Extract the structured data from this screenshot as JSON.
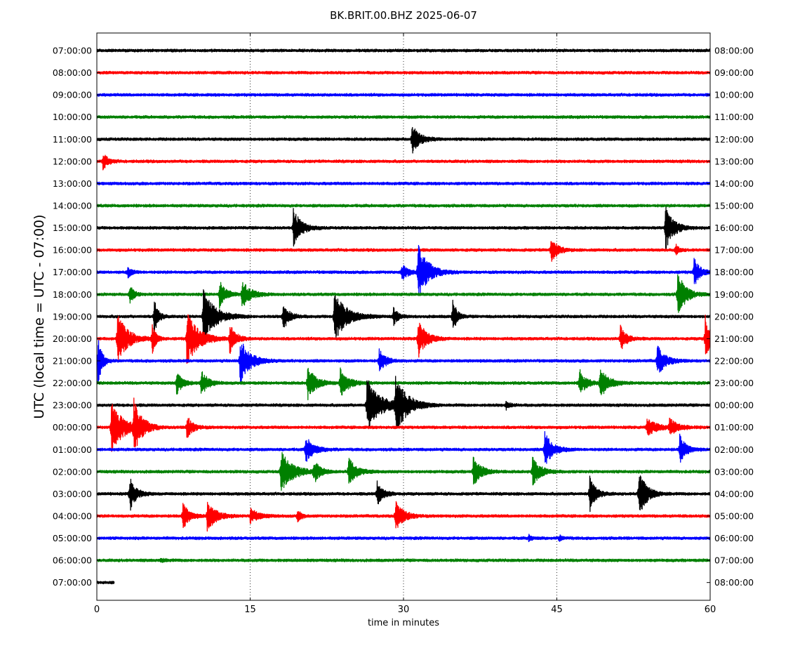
{
  "chart_data": {
    "type": "line",
    "title": "BK.BRIT.00.BHZ 2025-06-07",
    "xlabel": "time in minutes",
    "ylabel": "UTC (local time = UTC - 07:00)",
    "xlim": [
      0,
      60
    ],
    "x_ticks": [
      "0",
      "15",
      "30",
      "45",
      "60"
    ],
    "grid": "vertical dotted at 15, 30, 45",
    "trace_colors": [
      "#000000",
      "#ff0000",
      "#0000ff",
      "#008000"
    ],
    "rows": [
      {
        "left": "07:00:00",
        "right": "08:00:00",
        "bursts": [],
        "end_minute": 60
      },
      {
        "left": "08:00:00",
        "right": "09:00:00",
        "bursts": [],
        "end_minute": 60
      },
      {
        "left": "09:00:00",
        "right": "10:00:00",
        "bursts": [],
        "end_minute": 60
      },
      {
        "left": "10:00:00",
        "right": "11:00:00",
        "bursts": [],
        "end_minute": 60
      },
      {
        "left": "11:00:00",
        "right": "12:00:00",
        "bursts": [
          {
            "t": 30.8,
            "a": 1.0,
            "d": 2.0
          }
        ],
        "end_minute": 60
      },
      {
        "left": "12:00:00",
        "right": "13:00:00",
        "bursts": [
          {
            "t": 0.6,
            "a": 0.6,
            "d": 1.2
          }
        ],
        "end_minute": 60
      },
      {
        "left": "13:00:00",
        "right": "14:00:00",
        "bursts": [],
        "end_minute": 60
      },
      {
        "left": "14:00:00",
        "right": "15:00:00",
        "bursts": [],
        "end_minute": 60
      },
      {
        "left": "15:00:00",
        "right": "16:00:00",
        "bursts": [
          {
            "t": 19.2,
            "a": 1.3,
            "d": 2.0
          },
          {
            "t": 55.6,
            "a": 1.6,
            "d": 2.0
          }
        ],
        "end_minute": 60
      },
      {
        "left": "16:00:00",
        "right": "17:00:00",
        "bursts": [
          {
            "t": 44.4,
            "a": 1.0,
            "d": 1.5
          },
          {
            "t": 56.6,
            "a": 0.4,
            "d": 0.8
          }
        ],
        "end_minute": 60
      },
      {
        "left": "17:00:00",
        "right": "18:00:00",
        "bursts": [
          {
            "t": 3.0,
            "a": 0.4,
            "d": 1.0
          },
          {
            "t": 29.8,
            "a": 0.6,
            "d": 1.5
          },
          {
            "t": 31.4,
            "a": 2.0,
            "d": 2.5
          },
          {
            "t": 58.4,
            "a": 1.0,
            "d": 1.5
          }
        ],
        "end_minute": 60
      },
      {
        "left": "18:00:00",
        "right": "19:00:00",
        "bursts": [
          {
            "t": 3.2,
            "a": 0.7,
            "d": 1.0
          },
          {
            "t": 12.0,
            "a": 1.0,
            "d": 1.5
          },
          {
            "t": 14.2,
            "a": 1.0,
            "d": 2.0
          },
          {
            "t": 56.8,
            "a": 1.6,
            "d": 2.0
          }
        ],
        "end_minute": 60
      },
      {
        "left": "19:00:00",
        "right": "20:00:00",
        "bursts": [
          {
            "t": 5.6,
            "a": 1.3,
            "d": 1.0
          },
          {
            "t": 10.4,
            "a": 1.8,
            "d": 3.0
          },
          {
            "t": 18.2,
            "a": 1.0,
            "d": 1.5
          },
          {
            "t": 23.2,
            "a": 1.8,
            "d": 3.0
          },
          {
            "t": 29.0,
            "a": 0.7,
            "d": 1.0
          },
          {
            "t": 34.8,
            "a": 1.3,
            "d": 1.0
          }
        ],
        "end_minute": 60
      },
      {
        "left": "20:00:00",
        "right": "21:00:00",
        "bursts": [
          {
            "t": 2.0,
            "a": 1.8,
            "d": 2.5
          },
          {
            "t": 5.4,
            "a": 1.0,
            "d": 1.0
          },
          {
            "t": 8.8,
            "a": 1.8,
            "d": 3.0
          },
          {
            "t": 13.0,
            "a": 1.0,
            "d": 1.5
          },
          {
            "t": 31.4,
            "a": 1.4,
            "d": 2.0
          },
          {
            "t": 51.2,
            "a": 0.9,
            "d": 1.5
          },
          {
            "t": 59.5,
            "a": 1.6,
            "d": 1.5
          }
        ],
        "end_minute": 60
      },
      {
        "left": "21:00:00",
        "right": "22:00:00",
        "bursts": [
          {
            "t": 0.1,
            "a": 1.8,
            "d": 1.0
          },
          {
            "t": 14.0,
            "a": 1.6,
            "d": 2.5
          },
          {
            "t": 27.6,
            "a": 0.9,
            "d": 1.5
          },
          {
            "t": 54.8,
            "a": 1.1,
            "d": 2.0
          }
        ],
        "end_minute": 60
      },
      {
        "left": "22:00:00",
        "right": "23:00:00",
        "bursts": [
          {
            "t": 7.8,
            "a": 0.8,
            "d": 1.5
          },
          {
            "t": 10.2,
            "a": 1.0,
            "d": 1.5
          },
          {
            "t": 20.6,
            "a": 1.2,
            "d": 2.0
          },
          {
            "t": 23.8,
            "a": 1.0,
            "d": 2.0
          },
          {
            "t": 47.2,
            "a": 1.0,
            "d": 1.5
          },
          {
            "t": 49.2,
            "a": 1.2,
            "d": 2.0
          }
        ],
        "end_minute": 60
      },
      {
        "left": "23:00:00",
        "right": "00:00:00",
        "bursts": [
          {
            "t": 26.4,
            "a": 1.8,
            "d": 3.5
          },
          {
            "t": 29.2,
            "a": 1.8,
            "d": 3.0
          },
          {
            "t": 40.0,
            "a": 0.3,
            "d": 1.0
          }
        ],
        "end_minute": 60
      },
      {
        "left": "00:00:00",
        "right": "01:00:00",
        "bursts": [
          {
            "t": 1.4,
            "a": 1.8,
            "d": 3.0
          },
          {
            "t": 3.6,
            "a": 1.8,
            "d": 2.0
          },
          {
            "t": 8.8,
            "a": 0.8,
            "d": 1.5
          },
          {
            "t": 53.8,
            "a": 0.6,
            "d": 2.5
          },
          {
            "t": 56.0,
            "a": 0.6,
            "d": 2.0
          }
        ],
        "end_minute": 60
      },
      {
        "left": "01:00:00",
        "right": "02:00:00",
        "bursts": [
          {
            "t": 20.4,
            "a": 0.9,
            "d": 2.0
          },
          {
            "t": 43.8,
            "a": 1.2,
            "d": 2.0
          },
          {
            "t": 57.0,
            "a": 1.1,
            "d": 1.5
          }
        ],
        "end_minute": 60
      },
      {
        "left": "02:00:00",
        "right": "03:00:00",
        "bursts": [
          {
            "t": 18.0,
            "a": 1.4,
            "d": 3.0
          },
          {
            "t": 21.2,
            "a": 0.8,
            "d": 1.5
          },
          {
            "t": 24.6,
            "a": 1.0,
            "d": 2.0
          },
          {
            "t": 36.8,
            "a": 1.0,
            "d": 2.0
          },
          {
            "t": 42.6,
            "a": 1.0,
            "d": 2.0
          }
        ],
        "end_minute": 60
      },
      {
        "left": "03:00:00",
        "right": "04:00:00",
        "bursts": [
          {
            "t": 3.2,
            "a": 1.3,
            "d": 1.5
          },
          {
            "t": 27.4,
            "a": 0.9,
            "d": 1.5
          },
          {
            "t": 48.2,
            "a": 1.3,
            "d": 1.5
          },
          {
            "t": 53.0,
            "a": 1.6,
            "d": 2.0
          }
        ],
        "end_minute": 60
      },
      {
        "left": "04:00:00",
        "right": "05:00:00",
        "bursts": [
          {
            "t": 8.4,
            "a": 1.0,
            "d": 1.5
          },
          {
            "t": 10.8,
            "a": 1.1,
            "d": 2.0
          },
          {
            "t": 15.0,
            "a": 0.5,
            "d": 2.0
          },
          {
            "t": 19.6,
            "a": 0.4,
            "d": 1.0
          },
          {
            "t": 29.2,
            "a": 1.1,
            "d": 2.0
          }
        ],
        "end_minute": 60
      },
      {
        "left": "05:00:00",
        "right": "06:00:00",
        "bursts": [
          {
            "t": 42.2,
            "a": 0.2,
            "d": 1.0
          },
          {
            "t": 45.2,
            "a": 0.2,
            "d": 1.0
          }
        ],
        "end_minute": 60
      },
      {
        "left": "06:00:00",
        "right": "07:00:00",
        "bursts": [
          {
            "t": 6.2,
            "a": 0.15,
            "d": 1.0
          }
        ],
        "end_minute": 60
      },
      {
        "left": "07:00:00",
        "right": "08:00:00",
        "bursts": [],
        "end_minute": 1.7
      }
    ]
  }
}
